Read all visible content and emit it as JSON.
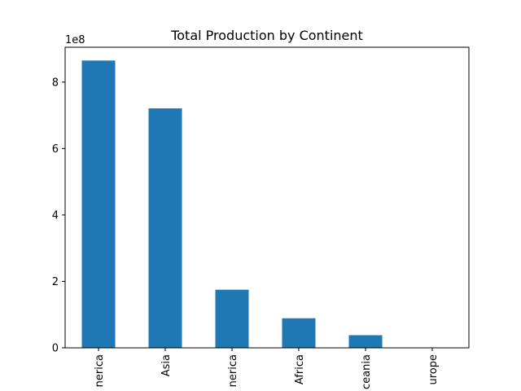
{
  "chart_data": {
    "type": "bar",
    "title": "Total Production by Continent",
    "xlabel": "",
    "ylabel": "",
    "offset_label": "1e8",
    "categories": [
      "North America",
      "Asia",
      "South America",
      "Africa",
      "Oceania",
      "Europe"
    ],
    "tick_labels": [
      "nerica",
      "Asia",
      "nerica",
      "Africa",
      "ceania",
      "urope"
    ],
    "values": [
      865000000,
      721000000,
      175000000,
      89000000,
      38000000,
      0
    ],
    "ylim": [
      0,
      905000000
    ],
    "yticks": [
      0,
      200000000,
      400000000,
      600000000,
      800000000
    ],
    "ytick_labels": [
      "0",
      "2",
      "4",
      "6",
      "8"
    ],
    "grid": false,
    "bar_color": "#1f77b4"
  }
}
